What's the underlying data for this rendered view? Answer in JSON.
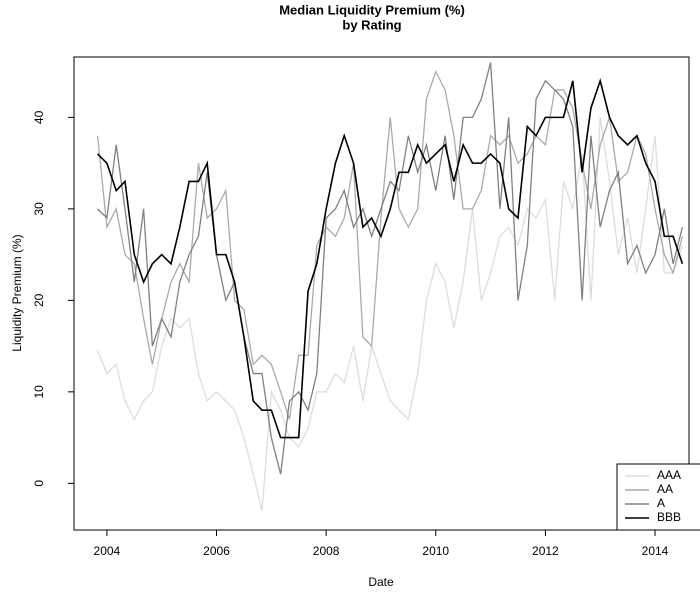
{
  "chart_data": {
    "type": "line",
    "title": "Median Liquidity Premium (%)",
    "subtitle": "by Rating",
    "x_label": "Date",
    "y_label": "Liquidity Premium (%)",
    "x": [
      2003.83,
      2004.0,
      2004.17,
      2004.33,
      2004.5,
      2004.67,
      2004.83,
      2005.0,
      2005.17,
      2005.33,
      2005.5,
      2005.67,
      2005.83,
      2006.0,
      2006.17,
      2006.33,
      2006.5,
      2006.67,
      2006.83,
      2007.0,
      2007.17,
      2007.33,
      2007.5,
      2007.67,
      2007.83,
      2008.0,
      2008.17,
      2008.33,
      2008.5,
      2008.67,
      2008.83,
      2009.0,
      2009.17,
      2009.33,
      2009.5,
      2009.67,
      2009.83,
      2010.0,
      2010.17,
      2010.33,
      2010.5,
      2010.67,
      2010.83,
      2011.0,
      2011.17,
      2011.33,
      2011.5,
      2011.67,
      2011.83,
      2012.0,
      2012.17,
      2012.33,
      2012.5,
      2012.67,
      2012.83,
      2013.0,
      2013.17,
      2013.33,
      2013.5,
      2013.67,
      2013.83,
      2014.0,
      2014.17,
      2014.33,
      2014.5
    ],
    "series": [
      {
        "name": "AAA",
        "color": "#dddddd",
        "values": [
          14.5,
          12,
          13,
          9,
          7,
          9,
          10,
          15,
          18,
          17,
          18,
          12,
          9,
          10,
          9,
          8,
          5,
          1,
          -3,
          10,
          8,
          5,
          4,
          6,
          10,
          10,
          12,
          11,
          15,
          9,
          15,
          12,
          9,
          8,
          7,
          12,
          20,
          24,
          22,
          17,
          22,
          30,
          20,
          23,
          27,
          28,
          26,
          30,
          29,
          31,
          20,
          33,
          30,
          36,
          20,
          40,
          33,
          25,
          29,
          23,
          30,
          38,
          23,
          23,
          26
        ]
      },
      {
        "name": "AA",
        "color": "#aaaaaa",
        "values": [
          38,
          28,
          30,
          25,
          24,
          18,
          13,
          18,
          22,
          24,
          22,
          35,
          29,
          30,
          32,
          20,
          19,
          13,
          14,
          13,
          10,
          7,
          14,
          14,
          26,
          28,
          27,
          29,
          35,
          16,
          15,
          29,
          40,
          30,
          28,
          30,
          42,
          45,
          43,
          38,
          30,
          30,
          32,
          38,
          37,
          38,
          35,
          36,
          38,
          37,
          43,
          43,
          41,
          35,
          30,
          37,
          40,
          33,
          34,
          38,
          36,
          30,
          25,
          23,
          27
        ]
      },
      {
        "name": "A",
        "color": "#808080",
        "values": [
          30,
          29,
          37,
          30,
          22,
          30,
          15,
          18,
          16,
          22,
          25,
          27,
          34,
          25,
          20,
          22,
          16,
          12,
          12,
          5,
          1,
          9,
          10,
          8,
          12,
          29,
          30,
          32,
          28,
          30,
          27,
          30,
          33,
          32,
          38,
          34,
          37,
          32,
          38,
          31,
          40,
          40,
          42,
          46,
          30,
          40,
          20,
          26,
          42,
          44,
          43,
          42,
          39,
          20,
          38,
          28,
          32,
          34,
          24,
          26,
          23,
          25,
          30,
          24,
          28
        ]
      },
      {
        "name": "BBB",
        "color": "#000000",
        "values": [
          36,
          35,
          32,
          33,
          25,
          22,
          24,
          25,
          24,
          28,
          33,
          33,
          35,
          25,
          25,
          22,
          16,
          9,
          8,
          8,
          5,
          5,
          5,
          21,
          24,
          30,
          35,
          38,
          35,
          28,
          29,
          27,
          30,
          34,
          34,
          37,
          35,
          36,
          37,
          33,
          37,
          35,
          35,
          36,
          35,
          30,
          29,
          39,
          38,
          40,
          40,
          40,
          44,
          34,
          41,
          44,
          40,
          38,
          37,
          38,
          35,
          33,
          27,
          27,
          24
        ]
      }
    ],
    "xlim": [
      2003.4,
      2014.62
    ],
    "xticks": [
      2004,
      2006,
      2008,
      2010,
      2012,
      2014
    ],
    "ylim": [
      -5.1,
      46.6
    ],
    "yticks": [
      0,
      10,
      20,
      30,
      40
    ],
    "grid": false,
    "legend": "bottom-right"
  }
}
